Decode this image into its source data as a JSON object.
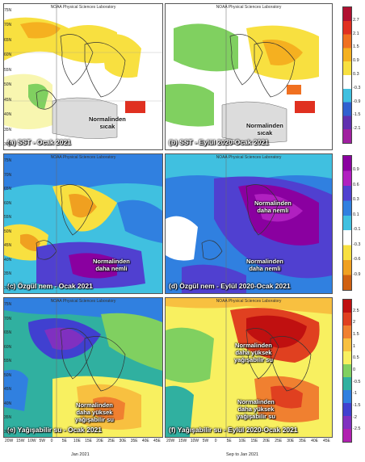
{
  "credit": "NOAA Physical Sciences Laboratory",
  "rows": [
    {
      "name": "sst",
      "panels": [
        {
          "id": "a",
          "label": "(a) SST - Ocak 2021",
          "annotations": [
            "Normalinden\nsıcak"
          ]
        },
        {
          "id": "b",
          "label": "(b) SST - Eylül 2020-Ocak 2021",
          "annotations": [
            "Normalinden\nsıcak"
          ]
        }
      ],
      "colorbar": {
        "ticks": [
          "2.7",
          "2.1",
          "1.5",
          "0.9",
          "0.3",
          "-0.3",
          "-0.9",
          "-1.5",
          "-2.1"
        ],
        "colors": [
          "#b01030",
          "#e03020",
          "#f07020",
          "#f5b020",
          "#f8e040",
          "#ffffff",
          "#40c0e0",
          "#3060d0",
          "#6030b0",
          "#a020a0"
        ]
      }
    },
    {
      "name": "specific-humidity",
      "panels": [
        {
          "id": "c",
          "label": "(c) Özgül nem - Ocak 2021",
          "annotations": [
            "Normalinden\ndaha nemli"
          ]
        },
        {
          "id": "d",
          "label": "(d) Özgül nem - Eylül 2020-Ocak 2021",
          "annotations": [
            "Normalinden\ndaha nemli",
            "Normalinden\ndaha nemli"
          ]
        }
      ],
      "colorbar": {
        "ticks": [
          "0.9",
          "0.6",
          "0.3",
          "0.1",
          "-0.1",
          "-0.3",
          "-0.6",
          "-0.9"
        ],
        "colors": [
          "#8a00a0",
          "#b020c0",
          "#5040d0",
          "#3080e0",
          "#40c0e0",
          "#ffffff",
          "#f8e040",
          "#f0a020",
          "#d06010"
        ]
      }
    },
    {
      "name": "precipitable-water",
      "panels": [
        {
          "id": "e",
          "label": "(e) Yağışabilir su - Ocak 2021",
          "annotations": [
            "Normalinden\ndaha yüksek\nyağışabilir su"
          ],
          "date": "Jan 2021"
        },
        {
          "id": "f",
          "label": "(f) Yağışabilir su - Eylül 2020-Ocak 2021",
          "annotations": [
            "Normalinden\ndaha yüksek\nyağışabilir su",
            "Normalinden\ndaha yüksek\nyağışabilir su"
          ],
          "date": "Sep to Jan 2021"
        }
      ],
      "colorbar": {
        "ticks": [
          "2.5",
          "2",
          "1.5",
          "1",
          "0.5",
          "0",
          "-0.5",
          "-1",
          "-1.5",
          "-2",
          "-2.5"
        ],
        "colors": [
          "#c01010",
          "#e04020",
          "#f08030",
          "#f8c040",
          "#f8f060",
          "#80d060",
          "#30b0a0",
          "#3080e0",
          "#4040d0",
          "#8030c0",
          "#b020b0"
        ]
      }
    }
  ],
  "latitudes": [
    "75N",
    "70N",
    "65N",
    "60N",
    "55N",
    "50N",
    "45N",
    "40N",
    "35N",
    "30N"
  ],
  "longitudes": [
    "20W",
    "15W",
    "10W",
    "5W",
    "0",
    "5E",
    "10E",
    "15E",
    "20E",
    "25E",
    "30E",
    "35E",
    "40E",
    "45E"
  ]
}
